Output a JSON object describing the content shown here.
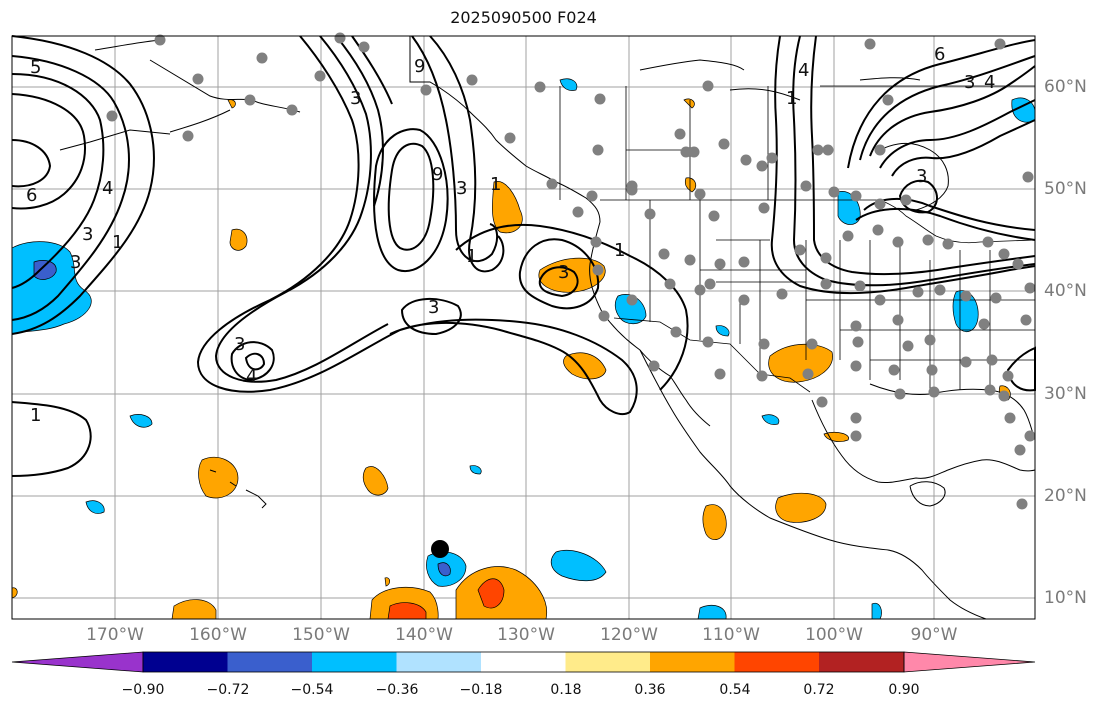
{
  "title": "2025090500 F024",
  "map": {
    "longitude_labels": [
      "170°W",
      "160°W",
      "150°W",
      "140°W",
      "130°W",
      "120°W",
      "110°W",
      "100°W",
      "90°W"
    ],
    "latitude_labels": [
      "60°N",
      "50°N",
      "40°N",
      "30°N",
      "20°N",
      "10°N"
    ],
    "land_color": "#ffffff",
    "ocean_color": "#ffffff",
    "gridline_color": "#a0a0a0",
    "station_marker_color": "#808080",
    "contour_labels": [
      "5",
      "6",
      "4",
      "3",
      "1",
      "3",
      "1",
      "9",
      "3",
      "1",
      "3",
      "1",
      "3",
      "3",
      "4",
      "1",
      "3",
      "4",
      "6",
      "1",
      "3",
      "9",
      "3",
      "4"
    ]
  },
  "colorbar": {
    "tick_labels": [
      "−0.90",
      "−0.72",
      "−0.54",
      "−0.36",
      "−0.18",
      "0.18",
      "0.36",
      "0.54",
      "0.72",
      "0.90"
    ],
    "colors": [
      "#9933cc",
      "#000090",
      "#3a5fcd",
      "#00bfff",
      "#b0e2ff",
      "#ffffff",
      "#ffeb8a",
      "#ffa500",
      "#ff4500",
      "#b22222",
      "#ff88aa"
    ]
  }
}
